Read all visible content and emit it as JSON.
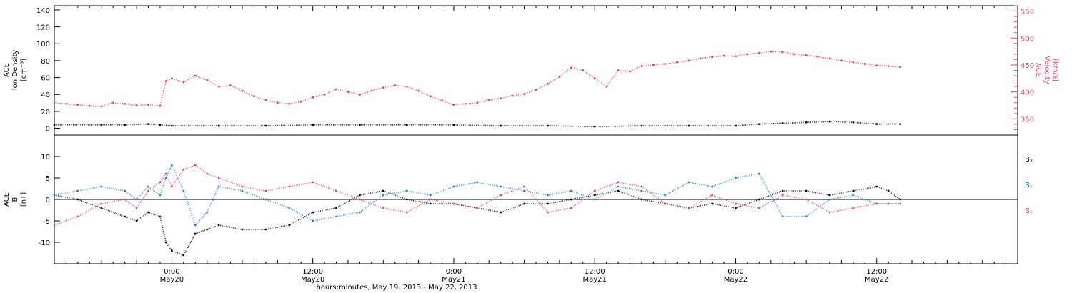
{
  "colors": {
    "density": "#000000",
    "velocity": "#e8426e",
    "bx": "#000000",
    "by": "#1a7fe0",
    "bz": "#e8426e",
    "axis": "#000000"
  },
  "xlabel": "hours:minutes, May 19, 2013 - May 22, 2013",
  "x_ticks": [
    {
      "hour": 24,
      "time": "0:00",
      "date": "May20"
    },
    {
      "hour": 36,
      "time": "12:00",
      "date": "May20"
    },
    {
      "hour": 48,
      "time": "0:00",
      "date": "May21"
    },
    {
      "hour": 60,
      "time": "12:00",
      "date": "May21"
    },
    {
      "hour": 72,
      "time": "0:00",
      "date": "May22"
    },
    {
      "hour": 84,
      "time": "12:00",
      "date": "May22"
    }
  ],
  "chart_data": [
    {
      "type": "scatter",
      "panel": "top",
      "xlim_hours_from_may19_0000": [
        14,
        96
      ],
      "left_axis": {
        "label_lines": [
          "ACE",
          "Ion Density",
          "[cm⁻³]"
        ],
        "ylim": [
          -8,
          145
        ],
        "ticks": [
          0,
          20,
          40,
          60,
          80,
          100,
          120,
          140
        ],
        "tick_labels": [
          "0",
          "20",
          "40",
          "60",
          "80",
          "100",
          "120",
          "140"
        ]
      },
      "right_axis": {
        "label_lines": [
          "ACE",
          "Velocity",
          "[km/s]"
        ],
        "ylim": [
          320,
          560
        ],
        "ticks": [
          350,
          400,
          450,
          500,
          550
        ],
        "tick_labels": [
          "350",
          "400",
          "450",
          "500",
          "550"
        ]
      },
      "series": [
        {
          "key": "density",
          "axis": "left",
          "x": [
            14,
            18,
            20,
            22,
            23,
            24,
            28,
            32,
            36,
            40,
            44,
            48,
            52,
            56,
            60,
            64,
            68,
            72,
            74,
            76,
            78,
            80,
            82,
            84,
            86
          ],
          "y": [
            4,
            4,
            4,
            5,
            4,
            3,
            3,
            3,
            4,
            4,
            4,
            4,
            3,
            3,
            2,
            3,
            3,
            3,
            5,
            6,
            7,
            8,
            7,
            5,
            5
          ]
        },
        {
          "key": "velocity",
          "axis": "right",
          "x": [
            14,
            15,
            16,
            17,
            18,
            19,
            20,
            21,
            22,
            23,
            23.5,
            24,
            25,
            26,
            27,
            28,
            29,
            30,
            31,
            32,
            33,
            34,
            35,
            36,
            37,
            38,
            39,
            40,
            41,
            42,
            43,
            44,
            45,
            46,
            47,
            48,
            49,
            50,
            51,
            52,
            53,
            54,
            55,
            56,
            57,
            58,
            59,
            60,
            61,
            62,
            63,
            64,
            65,
            66,
            67,
            68,
            69,
            70,
            71,
            72,
            73,
            74,
            75,
            76,
            77,
            78,
            79,
            80,
            81,
            82,
            83,
            84,
            85,
            86
          ],
          "y": [
            380,
            378,
            376,
            374,
            373,
            380,
            378,
            375,
            376,
            374,
            420,
            425,
            418,
            430,
            422,
            410,
            412,
            402,
            392,
            385,
            380,
            378,
            382,
            390,
            395,
            405,
            400,
            395,
            402,
            408,
            412,
            410,
            402,
            392,
            384,
            376,
            378,
            380,
            385,
            388,
            393,
            396,
            404,
            415,
            428,
            445,
            440,
            425,
            410,
            440,
            438,
            448,
            450,
            452,
            455,
            458,
            462,
            465,
            467,
            466,
            470,
            472,
            475,
            474,
            470,
            468,
            465,
            462,
            458,
            455,
            452,
            449,
            448,
            446
          ]
        }
      ]
    },
    {
      "type": "scatter",
      "panel": "bottom",
      "xlim_hours_from_may19_0000": [
        14,
        96
      ],
      "left_axis": {
        "label_lines": [
          "ACE",
          "B",
          "[nT]"
        ],
        "ylim": [
          -15,
          15
        ],
        "ticks": [
          -10,
          -5,
          0,
          5,
          10
        ],
        "tick_labels": [
          "-10",
          "-5",
          "0",
          "5",
          "10"
        ]
      },
      "legend": [
        "Bₓ",
        "Bᵧ",
        "Bₓ"
      ],
      "series": [
        {
          "key": "bx",
          "x": [
            14,
            16,
            18,
            20,
            21,
            22,
            23,
            23.5,
            24,
            25,
            26,
            27,
            28,
            30,
            32,
            34,
            36,
            38,
            40,
            42,
            44,
            46,
            48,
            50,
            52,
            54,
            56,
            58,
            60,
            62,
            64,
            66,
            68,
            70,
            72,
            74,
            76,
            78,
            80,
            82,
            84,
            85,
            86
          ],
          "y": [
            1,
            0,
            -2,
            -4,
            -5,
            -3,
            -4,
            -10,
            -12,
            -13,
            -8,
            -7,
            -6,
            -7,
            -7,
            -6,
            -3,
            -2,
            1,
            2,
            0,
            -1,
            -1,
            -2,
            -3,
            -1,
            -1,
            0,
            1,
            2,
            0,
            -1,
            -2,
            -1,
            -2,
            0,
            2,
            2,
            1,
            2,
            3,
            2,
            0
          ]
        },
        {
          "key": "by",
          "x": [
            14,
            16,
            18,
            20,
            21,
            22,
            23,
            23.5,
            24,
            25,
            26,
            27,
            28,
            30,
            32,
            34,
            36,
            38,
            40,
            42,
            44,
            46,
            48,
            50,
            52,
            54,
            56,
            58,
            60,
            62,
            64,
            66,
            68,
            70,
            72,
            74,
            76,
            78,
            80,
            82,
            84,
            85,
            86
          ],
          "y": [
            1,
            2,
            3,
            2,
            0,
            3,
            1,
            5,
            8,
            2,
            -6,
            -3,
            3,
            2,
            0,
            -2,
            -5,
            -4,
            -3,
            1,
            2,
            1,
            3,
            4,
            3,
            2,
            1,
            2,
            0,
            3,
            2,
            1,
            4,
            3,
            5,
            6,
            -4,
            -4,
            0,
            1,
            -1,
            -1,
            -1
          ]
        },
        {
          "key": "bz",
          "x": [
            14,
            16,
            18,
            20,
            21,
            22,
            23,
            23.5,
            24,
            25,
            26,
            27,
            28,
            30,
            32,
            34,
            36,
            38,
            40,
            42,
            44,
            46,
            48,
            50,
            52,
            54,
            56,
            58,
            60,
            62,
            64,
            66,
            68,
            70,
            72,
            74,
            76,
            78,
            80,
            82,
            84,
            85,
            86
          ],
          "y": [
            -6,
            -4,
            -1,
            0,
            -2,
            2,
            4,
            6,
            3,
            7,
            8,
            6,
            5,
            3,
            2,
            3,
            4,
            2,
            0,
            -2,
            -3,
            0,
            -1,
            -2,
            1,
            3,
            -3,
            -2,
            2,
            4,
            3,
            -1,
            -2,
            1,
            -1,
            -2,
            1,
            0,
            -3,
            -2,
            -1,
            -1,
            -1
          ]
        }
      ]
    }
  ]
}
